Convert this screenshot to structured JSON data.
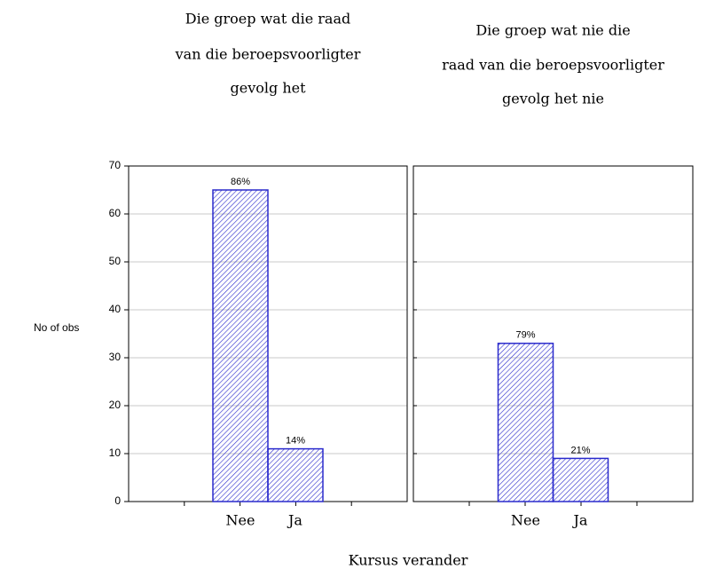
{
  "chart_data": [
    {
      "type": "bar",
      "title": [
        "Die groep wat die raad",
        "van die beroepsvoorligter",
        "gevolg het"
      ],
      "categories": [
        "Nee",
        "Ja"
      ],
      "values": [
        65,
        11
      ],
      "value_labels": [
        "86%",
        "14%"
      ],
      "color": "#2a2acc",
      "ylim": [
        0,
        70
      ],
      "yticks": [
        0,
        10,
        20,
        30,
        40,
        50,
        60,
        70
      ],
      "grid": true
    },
    {
      "type": "bar",
      "title": [
        "Die groep wat nie die",
        "raad van die beroepsvoorligter",
        "gevolg het nie"
      ],
      "categories": [
        "Nee",
        "Ja"
      ],
      "values": [
        33,
        9
      ],
      "value_labels": [
        "79%",
        "21%"
      ],
      "color": "#2a2acc",
      "ylim": [
        0,
        70
      ],
      "yticks": [
        0,
        10,
        20,
        30,
        40,
        50,
        60,
        70
      ],
      "grid": true
    }
  ],
  "y_label": "No of obs",
  "x_label": "Kursus verander"
}
